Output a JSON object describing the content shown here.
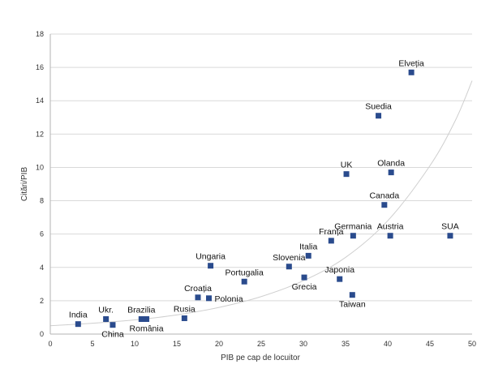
{
  "chart_data": {
    "type": "scatter",
    "title": "",
    "xlabel": "PIB pe cap de locuitor",
    "ylabel": "Citări/PIB",
    "xlim": [
      0,
      50
    ],
    "ylim": [
      0,
      18
    ],
    "xticks": [
      0,
      5,
      10,
      15,
      20,
      25,
      30,
      35,
      40,
      45,
      50
    ],
    "yticks": [
      0,
      2,
      4,
      6,
      8,
      10,
      12,
      14,
      16,
      18
    ],
    "grid": "horizontal",
    "legend": "none",
    "marker_color": "#2a4b8d",
    "trendline_color": "#cfcfcf",
    "trendline": {
      "kind": "exponential",
      "x": [
        0,
        5,
        10,
        15,
        20,
        25,
        30,
        35,
        40,
        45,
        48,
        50
      ],
      "y": [
        0.5,
        0.65,
        0.85,
        1.15,
        1.6,
        2.25,
        3.2,
        4.6,
        6.8,
        10.1,
        12.8,
        15.2
      ]
    },
    "points": [
      {
        "label": "India",
        "x": 3.3,
        "y": 0.6,
        "label_pos": "above"
      },
      {
        "label": "Ukr.",
        "x": 6.6,
        "y": 0.9,
        "label_pos": "above"
      },
      {
        "label": "China",
        "x": 7.4,
        "y": 0.55,
        "label_pos": "below"
      },
      {
        "label": "Brazilia",
        "x": 10.8,
        "y": 0.9,
        "label_pos": "above"
      },
      {
        "label": "România",
        "x": 11.4,
        "y": 0.9,
        "label_pos": "below"
      },
      {
        "label": "Rusia",
        "x": 15.9,
        "y": 0.95,
        "label_pos": "above"
      },
      {
        "label": "Croația",
        "x": 17.5,
        "y": 2.2,
        "label_pos": "above"
      },
      {
        "label": "Polonia",
        "x": 18.8,
        "y": 2.15,
        "label_pos": "right"
      },
      {
        "label": "Ungaria",
        "x": 19.0,
        "y": 4.1,
        "label_pos": "above"
      },
      {
        "label": "Portugalia",
        "x": 23.0,
        "y": 3.15,
        "label_pos": "above"
      },
      {
        "label": "Slovenia",
        "x": 28.3,
        "y": 4.05,
        "label_pos": "above"
      },
      {
        "label": "Italia",
        "x": 30.6,
        "y": 4.7,
        "label_pos": "above"
      },
      {
        "label": "Grecia",
        "x": 30.1,
        "y": 3.4,
        "label_pos": "below"
      },
      {
        "label": "Franța",
        "x": 33.3,
        "y": 5.6,
        "label_pos": "above"
      },
      {
        "label": "Germania",
        "x": 35.9,
        "y": 5.9,
        "label_pos": "above"
      },
      {
        "label": "Japonia",
        "x": 34.3,
        "y": 3.3,
        "label_pos": "above"
      },
      {
        "label": "Taiwan",
        "x": 35.8,
        "y": 2.35,
        "label_pos": "below"
      },
      {
        "label": "UK",
        "x": 35.1,
        "y": 9.6,
        "label_pos": "above"
      },
      {
        "label": "Olanda",
        "x": 40.4,
        "y": 9.7,
        "label_pos": "above"
      },
      {
        "label": "Canada",
        "x": 39.6,
        "y": 7.75,
        "label_pos": "above"
      },
      {
        "label": "Austria",
        "x": 40.3,
        "y": 5.9,
        "label_pos": "above"
      },
      {
        "label": "SUA",
        "x": 47.4,
        "y": 5.9,
        "label_pos": "above"
      },
      {
        "label": "Suedia",
        "x": 38.9,
        "y": 13.1,
        "label_pos": "above"
      },
      {
        "label": "Elveția",
        "x": 42.8,
        "y": 15.7,
        "label_pos": "above"
      }
    ]
  }
}
